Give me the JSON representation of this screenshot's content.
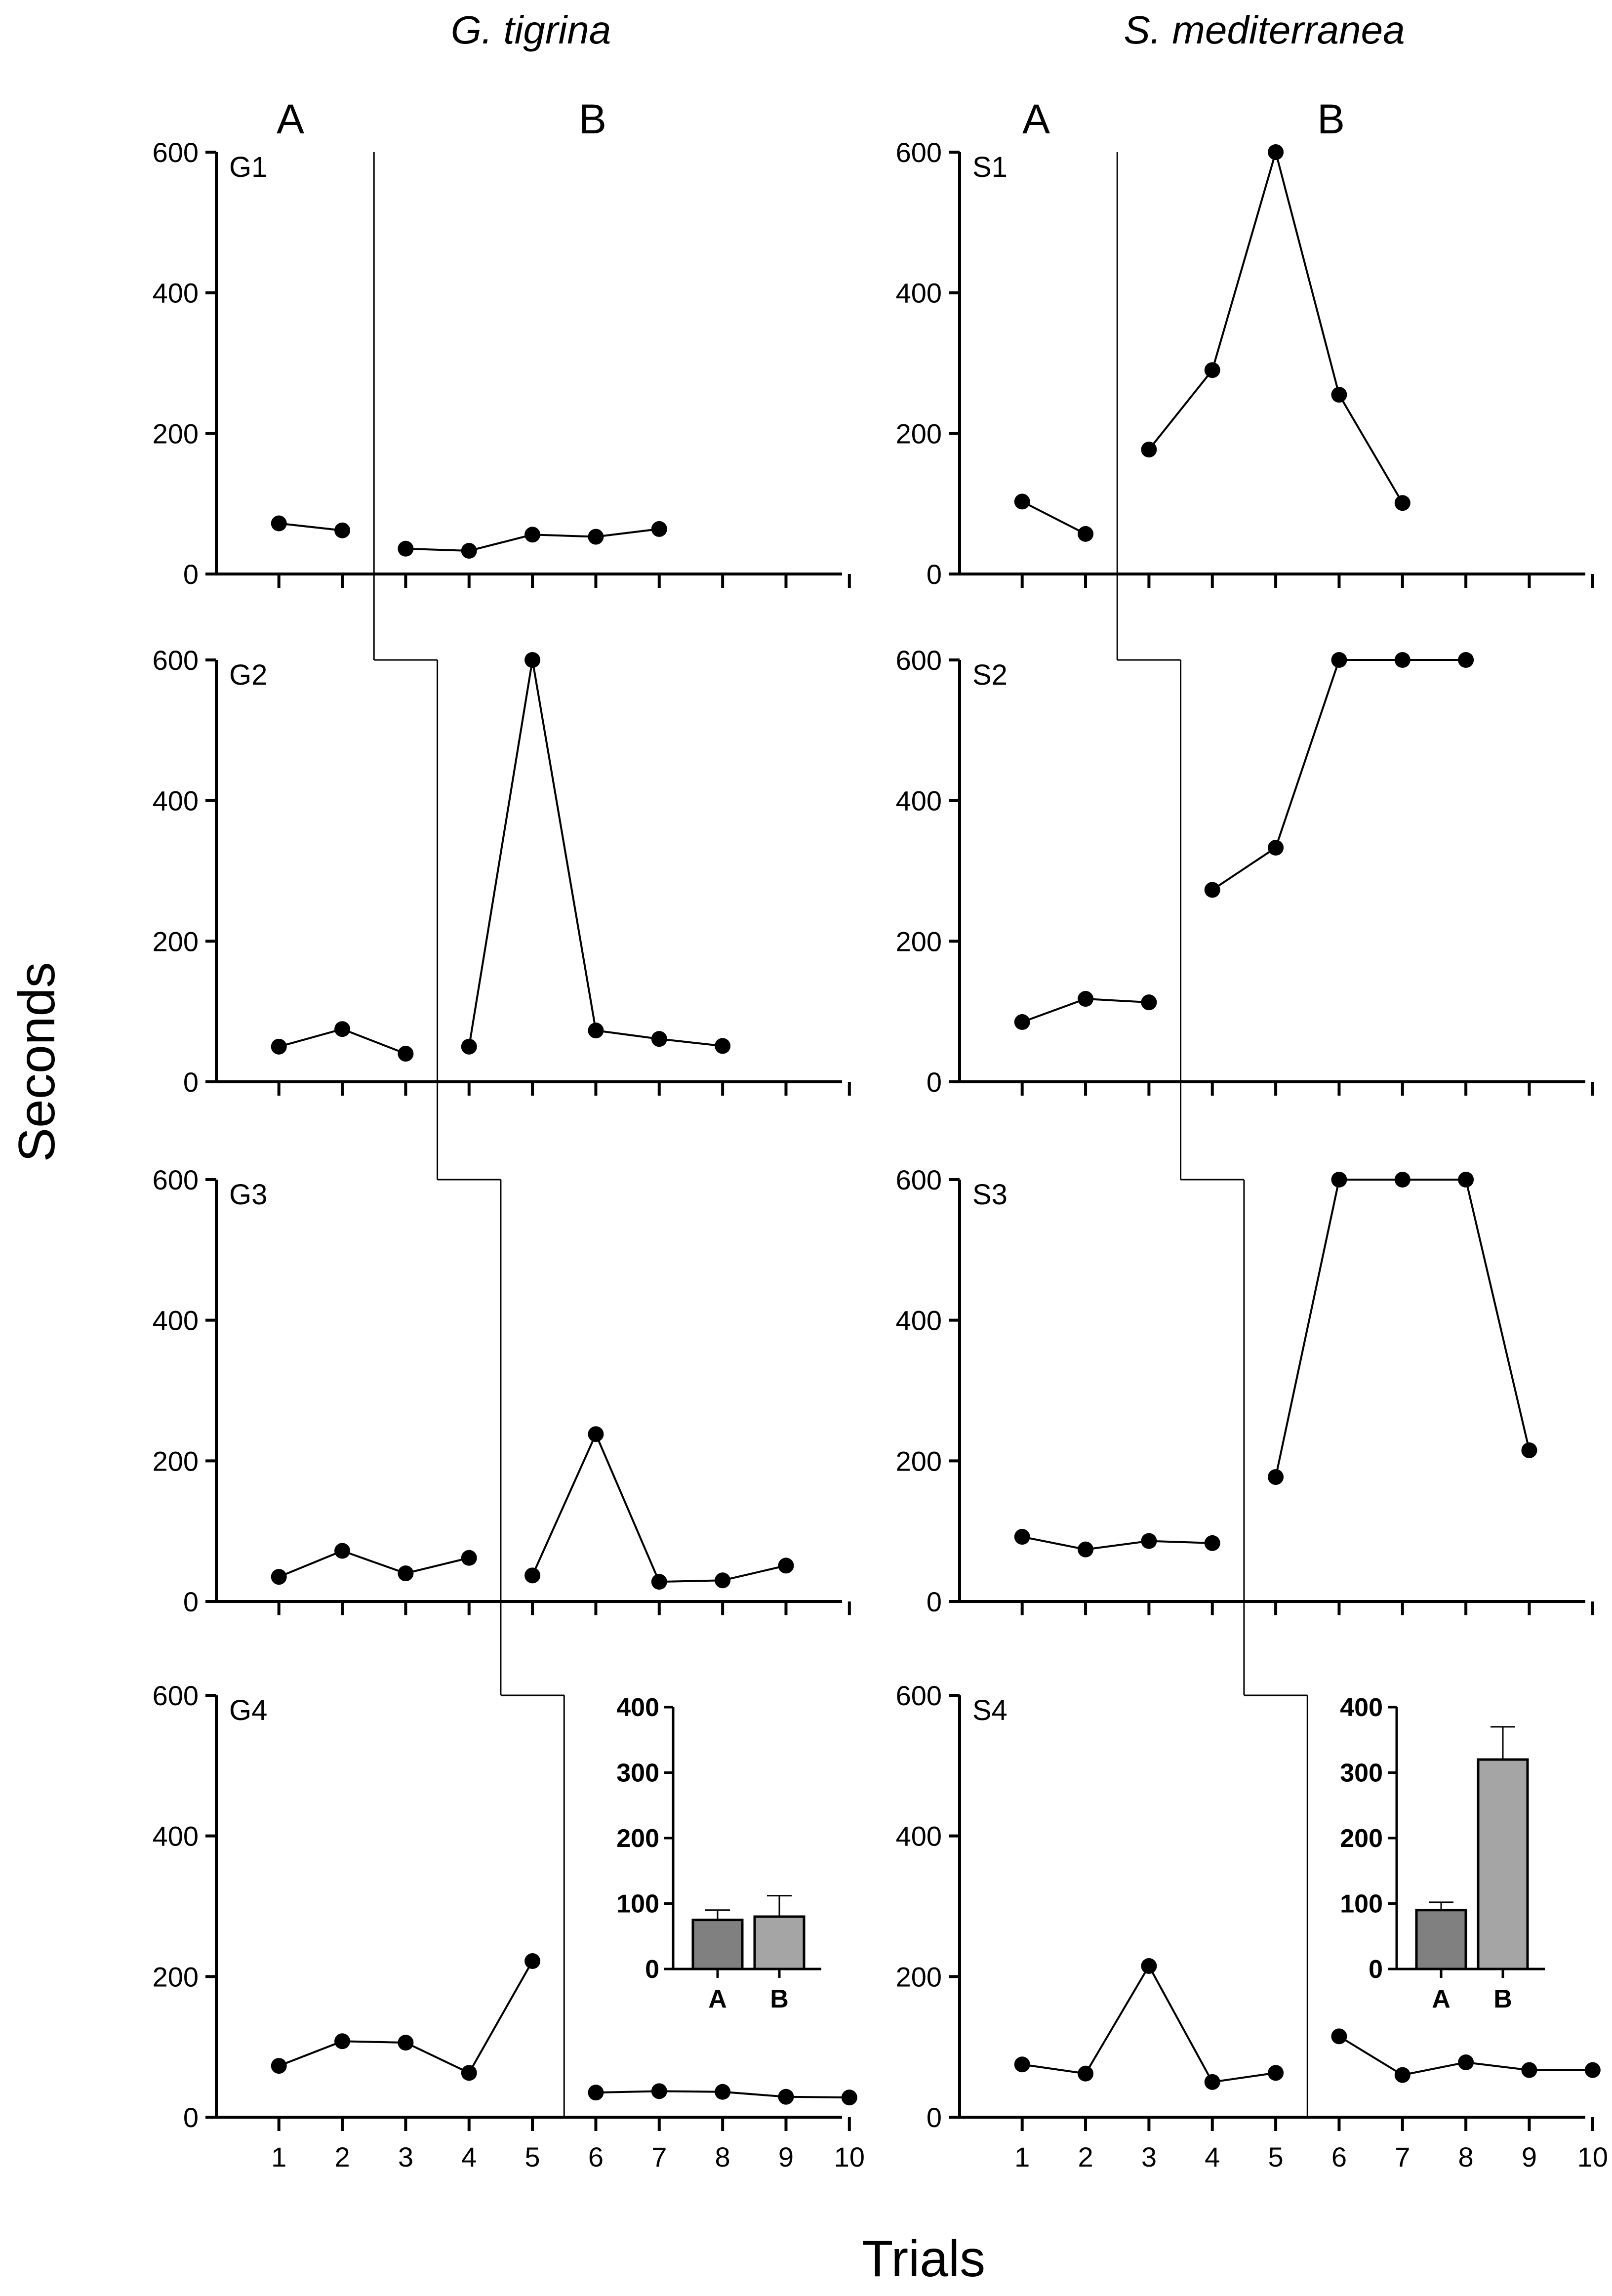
{
  "chart_data": {
    "type": "line",
    "ylabel": "Seconds",
    "xlabel": "Trials",
    "ylim": [
      0,
      600
    ],
    "yticks": [
      0,
      200,
      400,
      600
    ],
    "xticks": [
      1,
      2,
      3,
      4,
      5,
      6,
      7,
      8,
      9,
      10
    ],
    "phase_labels": [
      "A",
      "B"
    ],
    "columns": [
      {
        "title": "G. tigrina",
        "panels": [
          {
            "label": "G1",
            "phase_boundary": 2.5,
            "segments": [
              {
                "phase": "A",
                "x": [
                  1,
                  2
                ],
                "y": [
                  72,
                  62
                ]
              },
              {
                "phase": "B",
                "x": [
                  3,
                  4,
                  5,
                  6,
                  7
                ],
                "y": [
                  36,
                  33,
                  56,
                  53,
                  64
                ]
              }
            ]
          },
          {
            "label": "G2",
            "phase_boundary": 3.5,
            "segments": [
              {
                "phase": "A",
                "x": [
                  1,
                  2,
                  3
                ],
                "y": [
                  50,
                  75,
                  40
                ]
              },
              {
                "phase": "B",
                "x": [
                  4,
                  5,
                  6,
                  7,
                  8
                ],
                "y": [
                  50,
                  600,
                  73,
                  61,
                  51
                ]
              }
            ]
          },
          {
            "label": "G3",
            "phase_boundary": 4.5,
            "segments": [
              {
                "phase": "A",
                "x": [
                  1,
                  2,
                  3,
                  4
                ],
                "y": [
                  35,
                  72,
                  40,
                  62
                ]
              },
              {
                "phase": "B",
                "x": [
                  5,
                  6,
                  7,
                  8,
                  9
                ],
                "y": [
                  37,
                  238,
                  28,
                  30,
                  51
                ]
              }
            ]
          },
          {
            "label": "G4",
            "phase_boundary": 5.5,
            "segments": [
              {
                "phase": "A",
                "x": [
                  1,
                  2,
                  3,
                  4,
                  5
                ],
                "y": [
                  73,
                  108,
                  106,
                  63,
                  222
                ]
              },
              {
                "phase": "B",
                "x": [
                  6,
                  7,
                  8,
                  9,
                  10
                ],
                "y": [
                  35,
                  37,
                  36,
                  29,
                  28
                ]
              }
            ]
          }
        ],
        "inset": {
          "type": "bar",
          "categories": [
            "A",
            "B"
          ],
          "values": [
            75,
            80
          ],
          "errors": [
            15,
            32
          ],
          "colors": [
            "#808080",
            "#a5a5a5"
          ],
          "ylim": [
            0,
            400
          ],
          "yticks": [
            0,
            100,
            200,
            300,
            400
          ]
        }
      },
      {
        "title": "S. mediterranea",
        "panels": [
          {
            "label": "S1",
            "phase_boundary": 2.5,
            "segments": [
              {
                "phase": "A",
                "x": [
                  1,
                  2
                ],
                "y": [
                  103,
                  57
                ]
              },
              {
                "phase": "B",
                "x": [
                  3,
                  4,
                  5,
                  6,
                  7
                ],
                "y": [
                  177,
                  290,
                  600,
                  255,
                  101
                ]
              }
            ]
          },
          {
            "label": "S2",
            "phase_boundary": 3.5,
            "segments": [
              {
                "phase": "A",
                "x": [
                  1,
                  2,
                  3
                ],
                "y": [
                  85,
                  118,
                  113
                ]
              },
              {
                "phase": "B",
                "x": [
                  4,
                  5,
                  6,
                  7,
                  8
                ],
                "y": [
                  273,
                  333,
                  600,
                  600,
                  600
                ]
              }
            ]
          },
          {
            "label": "S3",
            "phase_boundary": 4.5,
            "segments": [
              {
                "phase": "A",
                "x": [
                  1,
                  2,
                  3,
                  4
                ],
                "y": [
                  92,
                  74,
                  86,
                  83
                ]
              },
              {
                "phase": "B",
                "x": [
                  5,
                  6,
                  7,
                  8,
                  9
                ],
                "y": [
                  177,
                  600,
                  600,
                  600,
                  215
                ]
              }
            ]
          },
          {
            "label": "S4",
            "phase_boundary": 5.5,
            "segments": [
              {
                "phase": "A",
                "x": [
                  1,
                  2,
                  3,
                  4,
                  5
                ],
                "y": [
                  75,
                  62,
                  215,
                  50,
                  63
                ]
              },
              {
                "phase": "B",
                "x": [
                  6,
                  7,
                  8,
                  9,
                  10
                ],
                "y": [
                  115,
                  60,
                  78,
                  67,
                  67
                ]
              }
            ]
          }
        ],
        "inset": {
          "type": "bar",
          "categories": [
            "A",
            "B"
          ],
          "values": [
            90,
            320
          ],
          "errors": [
            12,
            50
          ],
          "colors": [
            "#808080",
            "#a5a5a5"
          ],
          "ylim": [
            0,
            400
          ],
          "yticks": [
            0,
            100,
            200,
            300,
            400
          ]
        }
      }
    ]
  }
}
